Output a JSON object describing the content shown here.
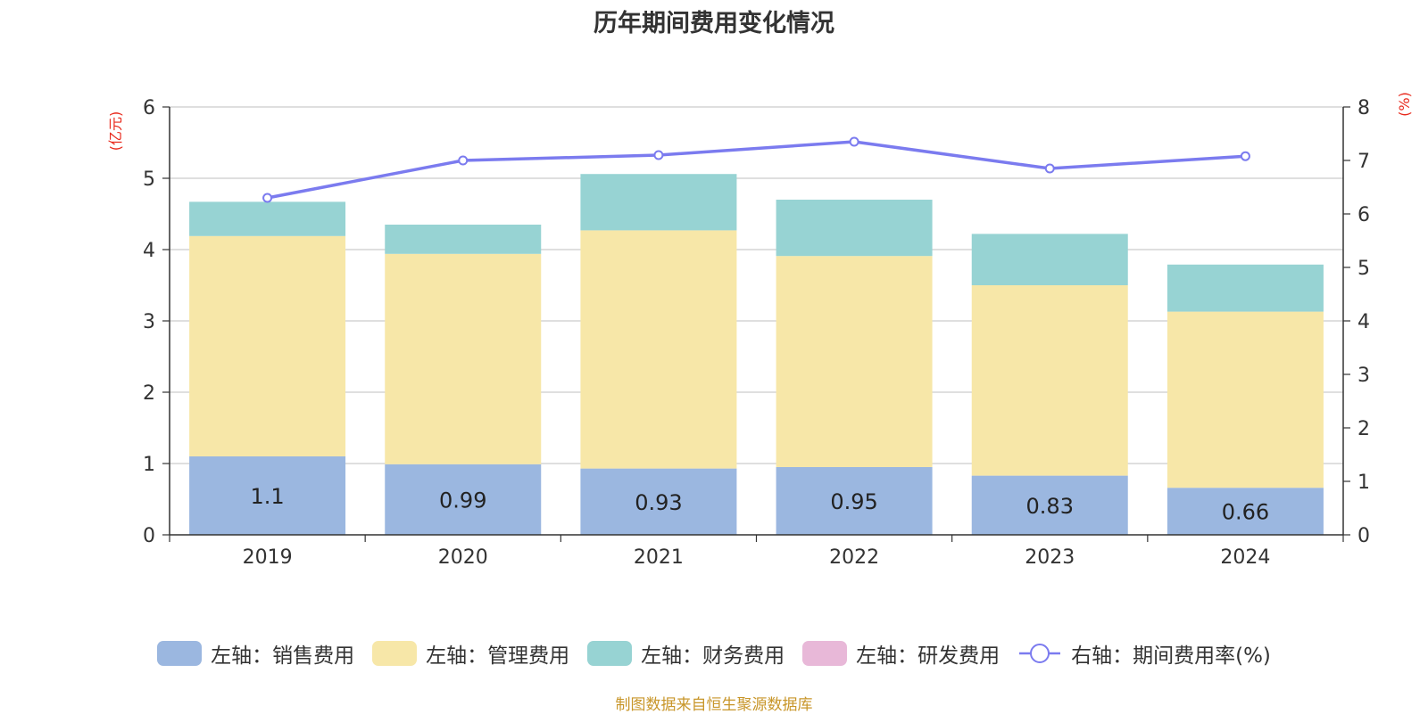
{
  "chart_data": {
    "type": "bar",
    "title": "历年期间费用变化情况",
    "categories": [
      "2019",
      "2020",
      "2021",
      "2022",
      "2023",
      "2024"
    ],
    "left_axis": {
      "unit_label": "(亿元)",
      "ylim": [
        0,
        6
      ],
      "ticks": [
        0,
        1,
        2,
        3,
        4,
        5,
        6
      ]
    },
    "right_axis": {
      "unit_label": "(%)",
      "ylim": [
        0,
        8
      ],
      "ticks": [
        0,
        1,
        2,
        3,
        4,
        5,
        6,
        7,
        8
      ]
    },
    "series": [
      {
        "name": "左轴：销售费用",
        "type": "bar",
        "stack": true,
        "axis": "left",
        "color": "#9bb7e0",
        "values": [
          1.1,
          0.99,
          0.93,
          0.95,
          0.83,
          0.66
        ],
        "data_labels": [
          "1.1",
          "0.99",
          "0.93",
          "0.95",
          "0.83",
          "0.66"
        ]
      },
      {
        "name": "左轴：管理费用",
        "type": "bar",
        "stack": true,
        "axis": "left",
        "color": "#f7e7a8",
        "values": [
          3.09,
          2.95,
          3.34,
          2.96,
          2.67,
          2.47
        ]
      },
      {
        "name": "左轴：财务费用",
        "type": "bar",
        "stack": true,
        "axis": "left",
        "color": "#97d3d3",
        "values": [
          0.48,
          0.41,
          0.79,
          0.79,
          0.72,
          0.66
        ]
      },
      {
        "name": "左轴：研发费用",
        "type": "bar",
        "stack": true,
        "axis": "left",
        "color": "#e8b8d8",
        "values": [
          0,
          0,
          0,
          0,
          0,
          0
        ]
      },
      {
        "name": "右轴：期间费用率(%)",
        "type": "line",
        "axis": "right",
        "color": "#7b7bef",
        "values": [
          6.3,
          7.0,
          7.1,
          7.35,
          6.85,
          7.08
        ]
      }
    ],
    "grid": true,
    "legend_position": "bottom"
  },
  "source_text": "制图数据来自恒生聚源数据库"
}
